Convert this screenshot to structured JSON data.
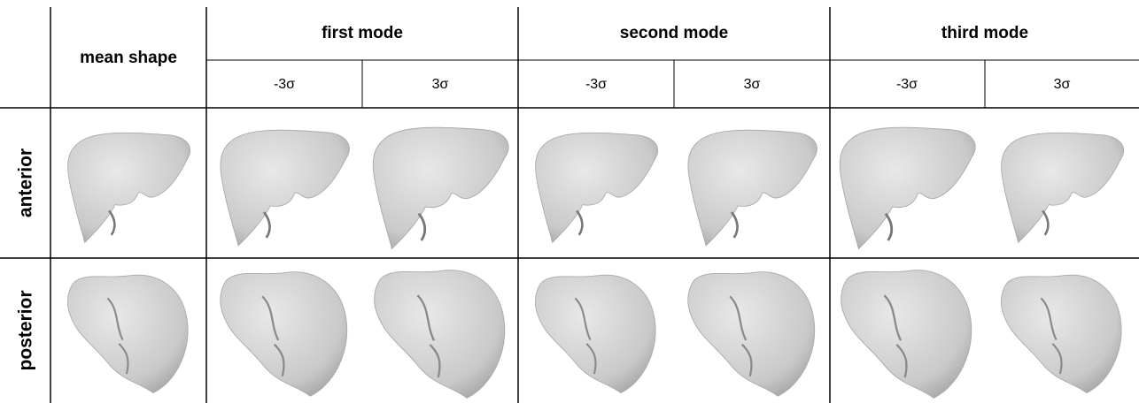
{
  "header": {
    "mean": "mean shape",
    "modes": [
      {
        "title": "first mode",
        "minus": "-3σ",
        "plus": "3σ"
      },
      {
        "title": "second mode",
        "minus": "-3σ",
        "plus": "3σ"
      },
      {
        "title": "third mode",
        "minus": "-3σ",
        "plus": "3σ"
      }
    ]
  },
  "rows": [
    {
      "label": "anterior"
    },
    {
      "label": "posterior"
    }
  ]
}
